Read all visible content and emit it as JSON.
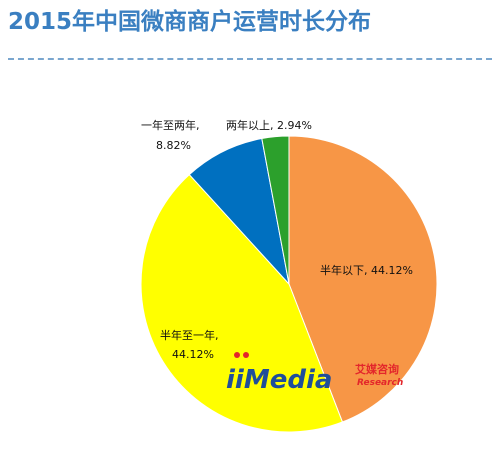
{
  "header": {
    "title": "2015年中国微商商户运营时长分布"
  },
  "chart_data": {
    "type": "pie",
    "title": "2015年中国微商商户运营时长分布",
    "slices": [
      {
        "label": "半年以下",
        "value": 44.12,
        "text": "半年以下, 44.12%",
        "color": "#f79646"
      },
      {
        "label": "半年至一年",
        "value": 44.12,
        "text": "半年至一年,",
        "text2": "44.12%",
        "color": "#ffff00"
      },
      {
        "label": "一年至两年",
        "value": 8.82,
        "text": "一年至两年,",
        "text2": "8.82%",
        "color": "#0070c0"
      },
      {
        "label": "两年以上",
        "value": 2.94,
        "text": "两年以上, 2.94%",
        "color": "#2ca02c"
      }
    ],
    "legend": "none",
    "start_angle_deg": 0,
    "direction": "clockwise"
  },
  "watermark": {
    "brand": "iiMedia",
    "cn": "艾媒咨询",
    "en": "Research"
  },
  "colors": {
    "title": "#3a7fc1",
    "divider": "#7aa6cf",
    "logo_blue": "#1f4e9a",
    "logo_red": "#e3262b"
  }
}
